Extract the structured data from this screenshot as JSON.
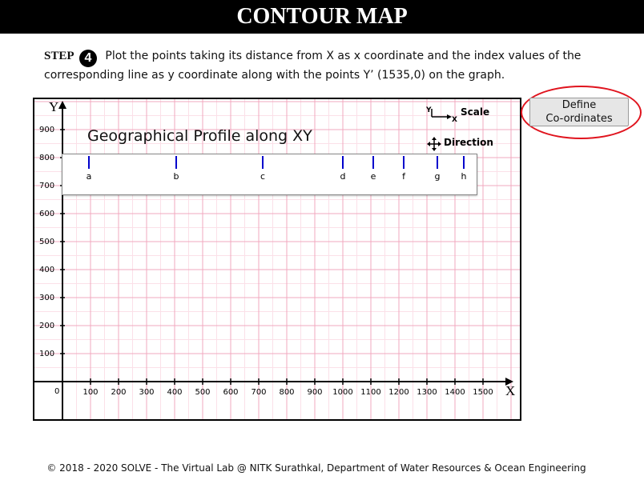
{
  "header": {
    "title": "CONTOUR MAP"
  },
  "instruction": {
    "step_label": "STEP",
    "step_number": "4",
    "text": "Plot the points taking its distance from X as x coordinate and the index values of the corresponding line as y coordinate along with the points Y’ (1535,0) on the graph."
  },
  "graph": {
    "y_axis_label": "Y",
    "x_axis_label": "X",
    "origin_label": "0",
    "y_ticks": [
      "900",
      "800",
      "700",
      "600",
      "500",
      "400",
      "300",
      "200",
      "100"
    ],
    "x_ticks": [
      "100",
      "200",
      "300",
      "400",
      "500",
      "600",
      "700",
      "800",
      "900",
      "1000",
      "1100",
      "1200",
      "1300",
      "1400",
      "1500"
    ]
  },
  "profile": {
    "title": "Geographical Profile along XY",
    "points": [
      {
        "label": "a",
        "pos": 110
      },
      {
        "label": "b",
        "pos": 219
      },
      {
        "label": "c",
        "pos": 327
      },
      {
        "label": "d",
        "pos": 427
      },
      {
        "label": "e",
        "pos": 465
      },
      {
        "label": "f",
        "pos": 503
      },
      {
        "label": "g",
        "pos": 545
      },
      {
        "label": "h",
        "pos": 578
      }
    ]
  },
  "controls": {
    "scale_label": "Scale",
    "scale_y": "Y",
    "scale_x": "X",
    "direction_label": "Direction",
    "define_button": "Define\nCo-ordinates"
  },
  "footer": {
    "text": "© 2018 - 2020 SOLVE - The Virtual Lab @ NITK Surathkal, Department of Water Resources & Ocean Engineering"
  },
  "colors": {
    "grid_major": "#f2a9bf",
    "grid_minor": "#fbe0e8",
    "highlight": "#e0141e",
    "profile_tick": "#0000cc"
  }
}
